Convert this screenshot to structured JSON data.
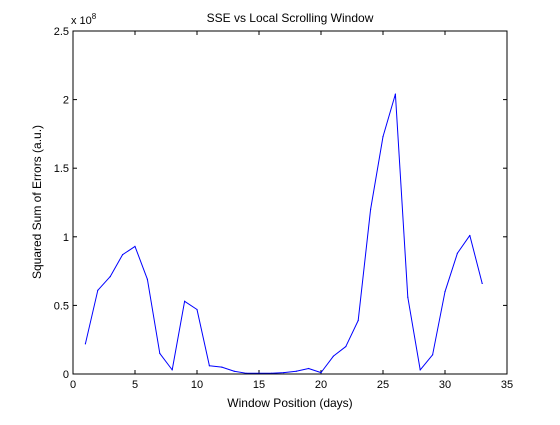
{
  "chart_data": {
    "type": "line",
    "title": "SSE vs Local Scrolling Window",
    "xlabel": "Window Position (days)",
    "ylabel": "Squared Sum of Errors (a.u.)",
    "y_exponent_label": "x 10",
    "y_exponent": "8",
    "xlim": [
      0,
      35
    ],
    "ylim": [
      0,
      2.5
    ],
    "xticks": [
      0,
      5,
      10,
      15,
      20,
      25,
      30,
      35
    ],
    "yticks": [
      0,
      0.5,
      1,
      1.5,
      2,
      2.5
    ],
    "ytick_labels": [
      "0",
      "0.5",
      "1",
      "1.5",
      "2",
      "2.5"
    ],
    "grid": false,
    "series": [
      {
        "color": "#0000ff",
        "x": [
          1,
          2,
          3,
          4,
          5,
          6,
          7,
          8,
          9,
          10,
          11,
          12,
          13,
          14,
          15,
          16,
          17,
          18,
          19,
          20,
          21,
          22,
          23,
          24,
          25,
          26,
          27,
          28,
          29,
          30,
          31,
          32,
          33
        ],
        "y": [
          0.22,
          0.61,
          0.71,
          0.87,
          0.93,
          0.69,
          0.15,
          0.03,
          0.53,
          0.47,
          0.06,
          0.05,
          0.02,
          0.005,
          0.005,
          0.005,
          0.01,
          0.02,
          0.04,
          0.01,
          0.13,
          0.2,
          0.39,
          1.2,
          1.73,
          2.04,
          0.56,
          0.03,
          0.14,
          0.6,
          0.88,
          1.01,
          0.66
        ]
      }
    ]
  }
}
